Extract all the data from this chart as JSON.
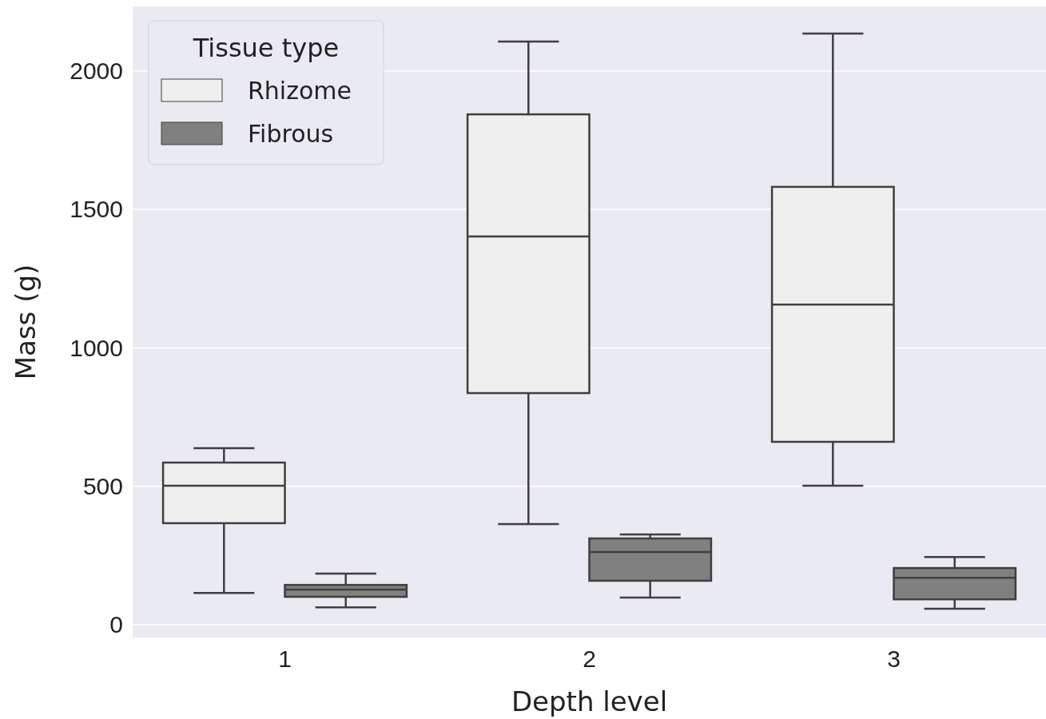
{
  "chart_data": {
    "type": "box",
    "xlabel": "Depth level",
    "ylabel": "Mass (g)",
    "categories": [
      "1",
      "2",
      "3"
    ],
    "ylim": [
      -46,
      2234
    ],
    "yticks": [
      0,
      500,
      1000,
      1500,
      2000
    ],
    "grid": "y",
    "legend": "top left",
    "legend_title": "Tissue type",
    "series": [
      {
        "name": "Rhizome",
        "color": "#efefef",
        "boxes": [
          {
            "low": 115,
            "q1": 367,
            "median": 502,
            "q3": 586,
            "high": 638
          },
          {
            "low": 364,
            "q1": 837,
            "median": 1403,
            "q3": 1844,
            "high": 2107
          },
          {
            "low": 502,
            "q1": 661,
            "median": 1157,
            "q3": 1582,
            "high": 2136
          }
        ]
      },
      {
        "name": "Fibrous",
        "color": "#808080",
        "boxes": [
          {
            "low": 63,
            "q1": 101,
            "median": 127,
            "q3": 144,
            "high": 185
          },
          {
            "low": 98,
            "q1": 159,
            "median": 263,
            "q3": 312,
            "high": 326
          },
          {
            "low": 58,
            "q1": 92,
            "median": 170,
            "q3": 205,
            "high": 245
          }
        ]
      }
    ]
  }
}
